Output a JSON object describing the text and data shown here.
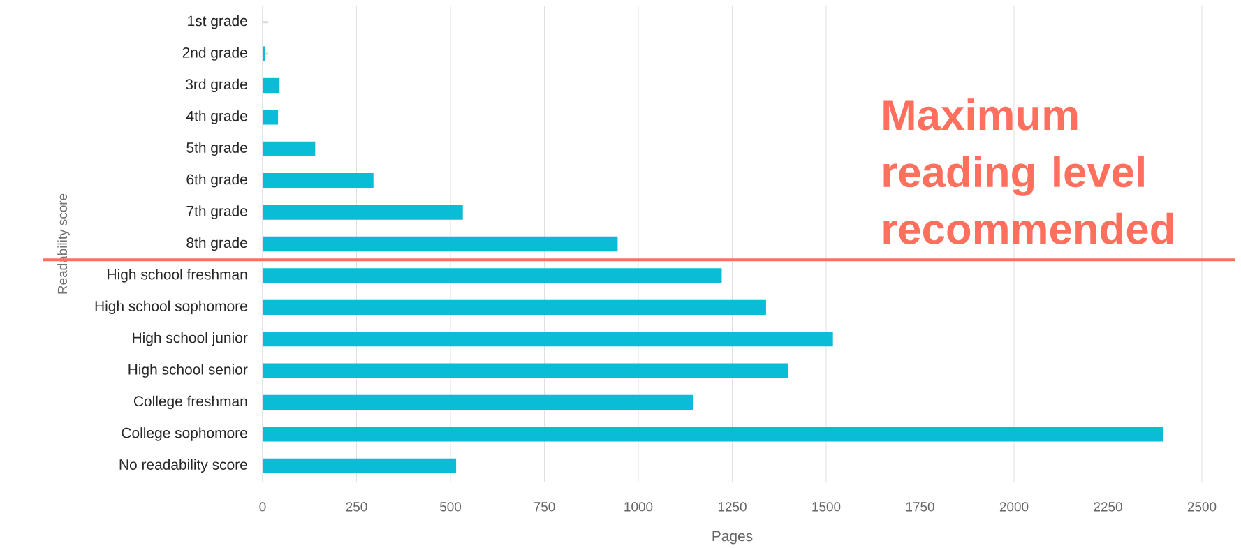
{
  "chart_data": {
    "type": "bar",
    "orientation": "horizontal",
    "xlabel": "Pages",
    "ylabel": "Readability score",
    "categories": [
      "1st grade",
      "2nd grade",
      "3rd grade",
      "4th grade",
      "5th grade",
      "6th grade",
      "7th grade",
      "8th grade",
      "High school freshman",
      "High school sophomore",
      "High school junior",
      "High school senior",
      "College freshman",
      "College sophomore",
      "No readability score"
    ],
    "values": [
      0,
      6,
      45,
      41,
      140,
      295,
      533,
      945,
      1222,
      1340,
      1518,
      1399,
      1145,
      2396,
      515
    ],
    "color": "#0bbcd6",
    "xlim": [
      0,
      2500
    ],
    "xticks": [
      0,
      250,
      500,
      750,
      1000,
      1250,
      1500,
      1750,
      2000,
      2250,
      2500
    ],
    "grid": "x",
    "ref_lines": [
      {
        "axis": "y",
        "value": "8th grade",
        "label": "Maximum reading level recommended",
        "color": "#ff6f5e"
      }
    ]
  }
}
